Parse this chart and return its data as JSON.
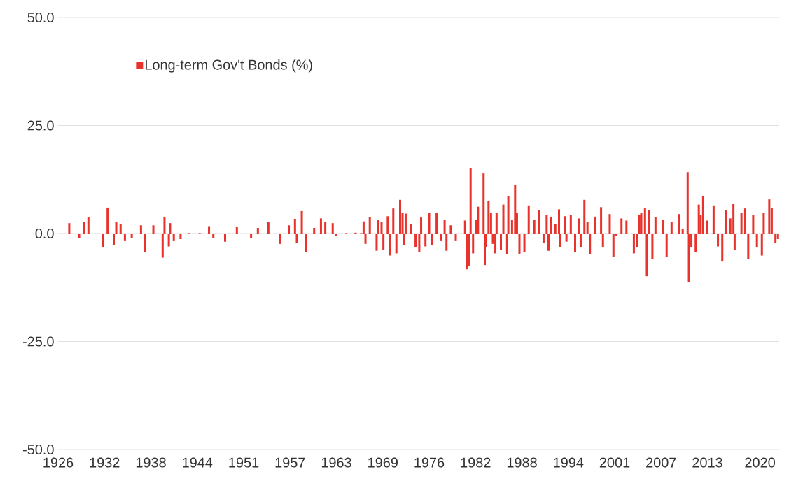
{
  "chart_data": {
    "type": "bar",
    "x": [
      "1927-07",
      "1928-11",
      "1929-07",
      "1930-02",
      "1932-02",
      "1932-09",
      "1933-07",
      "1933-11",
      "1934-06",
      "1935-01",
      "1935-12",
      "1937-03",
      "1937-09",
      "1938-11",
      "1940-02",
      "1940-05",
      "1940-12",
      "1941-02",
      "1941-08",
      "1942-07",
      "1943-09",
      "1945-02",
      "1946-05",
      "1946-12",
      "1948-07",
      "1950-02",
      "1952-01",
      "1952-12",
      "1954-05",
      "1955-12",
      "1957-02",
      "1957-12",
      "1958-03",
      "1958-11",
      "1959-06",
      "1960-07",
      "1961-06",
      "1962-01",
      "1963-01",
      "1963-07",
      "1964-11",
      "1966-02",
      "1966-11",
      "1967-03",
      "1967-06",
      "1968-01",
      "1968-12",
      "1969-02",
      "1969-08",
      "1969-11",
      "1970-06",
      "1970-09",
      "1971-03",
      "1971-08",
      "1972-02",
      "1972-06",
      "1972-08",
      "1972-11",
      "1973-08",
      "1974-03",
      "1974-09",
      "1974-12",
      "1975-07",
      "1976-01",
      "1976-06",
      "1977-01",
      "1977-08",
      "1978-02",
      "1978-05",
      "1978-12",
      "1979-08",
      "1980-11",
      "1981-02",
      "1981-06",
      "1981-08",
      "1981-12",
      "1982-05",
      "1982-08",
      "1983-05",
      "1983-07",
      "1983-09",
      "1984-01",
      "1984-05",
      "1984-08",
      "1984-12",
      "1985-02",
      "1985-09",
      "1986-01",
      "1986-07",
      "1986-09",
      "1987-03",
      "1987-08",
      "1987-11",
      "1988-03",
      "1988-11",
      "1989-06",
      "1990-03",
      "1990-11",
      "1991-06",
      "1991-11",
      "1992-02",
      "1992-06",
      "1993-01",
      "1993-07",
      "1993-09",
      "1994-05",
      "1994-07",
      "1995-02",
      "1995-09",
      "1996-03",
      "1996-06",
      "1996-12",
      "1997-05",
      "1997-09",
      "1998-05",
      "1999-03",
      "1999-06",
      "2000-05",
      "2000-11",
      "2001-03",
      "2001-12",
      "2002-08",
      "2003-08",
      "2004-01",
      "2004-05",
      "2004-08",
      "2005-02",
      "2005-05",
      "2005-08",
      "2006-02",
      "2006-07",
      "2007-07",
      "2008-01",
      "2008-09",
      "2009-09",
      "2010-03",
      "2010-11",
      "2011-01",
      "2011-05",
      "2011-12",
      "2012-05",
      "2012-08",
      "2012-12",
      "2013-06",
      "2014-05",
      "2014-12",
      "2015-07",
      "2016-01",
      "2016-08",
      "2017-01",
      "2017-03",
      "2018-02",
      "2018-08",
      "2019-01",
      "2019-09",
      "2020-03",
      "2020-11",
      "2021-02",
      "2021-11",
      "2022-03",
      "2022-09",
      "2023-01"
    ],
    "series": [
      {
        "name": "Long-term Gov't Bonds (%)",
        "color": "#e8322b",
        "values": [
          2.4,
          -1.1,
          2.7,
          3.8,
          -3.2,
          6.0,
          -2.7,
          2.7,
          2.2,
          -1.6,
          -1.1,
          1.9,
          -4.3,
          1.9,
          -5.6,
          3.9,
          -3.0,
          2.4,
          -1.6,
          -1.3,
          0.1,
          0.1,
          1.7,
          -1.1,
          -1.9,
          1.6,
          -1.1,
          1.3,
          2.7,
          -2.4,
          1.9,
          3.4,
          -2.2,
          5.2,
          -4.3,
          1.3,
          3.5,
          2.7,
          2.4,
          -0.5,
          0.1,
          0.2,
          0.1,
          2.8,
          -2.4,
          3.8,
          -4.0,
          3.2,
          2.7,
          -3.8,
          4.0,
          -5.1,
          5.8,
          -4.6,
          7.8,
          4.8,
          -2.7,
          4.6,
          2.2,
          -3.2,
          -4.3,
          3.7,
          -3.0,
          4.7,
          -2.7,
          4.7,
          -1.6,
          3.2,
          -4.0,
          1.9,
          -1.6,
          3.0,
          -8.3,
          -7.5,
          15.2,
          -4.6,
          3.2,
          6.2,
          13.9,
          -7.3,
          -3.2,
          7.5,
          4.8,
          -2.4,
          -4.6,
          4.8,
          -3.8,
          6.7,
          -4.8,
          8.7,
          3.2,
          11.3,
          4.8,
          -4.8,
          -4.3,
          6.5,
          3.2,
          5.4,
          -2.2,
          4.3,
          -4.0,
          3.8,
          2.2,
          5.6,
          -3.2,
          4.0,
          -1.9,
          4.3,
          -4.3,
          3.5,
          -3.2,
          7.8,
          2.7,
          -4.8,
          3.9,
          6.1,
          -3.2,
          4.5,
          -5.4,
          -0.5,
          3.5,
          3.0,
          -4.6,
          -3.2,
          4.3,
          4.8,
          5.9,
          -9.9,
          5.4,
          -5.9,
          3.8,
          3.2,
          -5.4,
          2.7,
          4.5,
          1.1,
          14.2,
          -11.3,
          -3.2,
          -4.3,
          6.7,
          4.3,
          8.6,
          3.0,
          6.5,
          -3.0,
          -6.5,
          5.4,
          3.5,
          6.8,
          -3.8,
          4.8,
          5.8,
          -5.9,
          4.3,
          -3.2,
          -5.1,
          4.8,
          7.9,
          5.9,
          -2.2,
          -1.3
        ]
      }
    ],
    "xlim": [
      "1926-01",
      "2023-03"
    ],
    "xticks": [
      {
        "value": "1926-01",
        "label": "1926"
      },
      {
        "value": "1932-04",
        "label": "1932"
      },
      {
        "value": "1938-07",
        "label": "1938"
      },
      {
        "value": "1944-10",
        "label": "1944"
      },
      {
        "value": "1951-01",
        "label": "1951"
      },
      {
        "value": "1957-04",
        "label": "1957"
      },
      {
        "value": "1963-07",
        "label": "1963"
      },
      {
        "value": "1969-10",
        "label": "1969"
      },
      {
        "value": "1976-01",
        "label": "1976"
      },
      {
        "value": "1982-04",
        "label": "1982"
      },
      {
        "value": "1988-07",
        "label": "1988"
      },
      {
        "value": "1994-10",
        "label": "1994"
      },
      {
        "value": "2001-01",
        "label": "2001"
      },
      {
        "value": "2007-04",
        "label": "2007"
      },
      {
        "value": "2013-07",
        "label": "2013"
      },
      {
        "value": "2020-08",
        "label": "2020"
      }
    ],
    "ylim": [
      -50,
      50
    ],
    "yticks": [
      {
        "value": -50,
        "label": "-50.0"
      },
      {
        "value": -25,
        "label": "-25.0"
      },
      {
        "value": 0,
        "label": "0.0"
      },
      {
        "value": 25,
        "label": "25.0"
      },
      {
        "value": 50,
        "label": "50.0"
      }
    ],
    "grid": "y",
    "legend": "top left"
  }
}
